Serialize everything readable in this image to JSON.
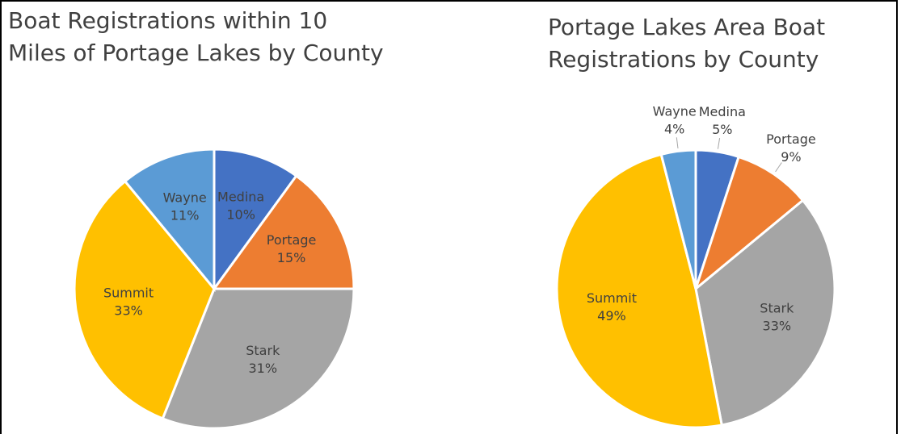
{
  "chart_data": [
    {
      "type": "pie",
      "title": "Boat Registrations within 10 Miles of Portage Lakes by County",
      "categories": [
        "Medina",
        "Portage",
        "Stark",
        "Summit",
        "Wayne"
      ],
      "values": [
        10,
        15,
        31,
        33,
        11
      ],
      "value_labels": [
        "10%",
        "15%",
        "31%",
        "33%",
        "11%"
      ],
      "colors": [
        "#4472c4",
        "#ed7d31",
        "#a5a5a5",
        "#ffc000",
        "#5b9bd5"
      ]
    },
    {
      "type": "pie",
      "title": "Portage Lakes Area Boat Registrations by County",
      "categories": [
        "Medina",
        "Portage",
        "Stark",
        "Summit",
        "Wayne"
      ],
      "values": [
        5,
        9,
        33,
        49,
        4
      ],
      "value_labels": [
        "5%",
        "9%",
        "33%",
        "49%",
        "4%"
      ],
      "colors": [
        "#4472c4",
        "#ed7d31",
        "#a5a5a5",
        "#ffc000",
        "#5b9bd5"
      ]
    }
  ]
}
